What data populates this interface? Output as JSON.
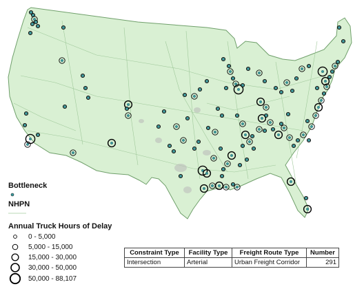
{
  "legend": {
    "bottleneck_label": "Bottleneck",
    "nhpn_label": "NHPN",
    "delay_title": "Annual Truck Hours of Delay",
    "delay_classes": [
      "0 - 5,000",
      "5,000 - 15,000",
      "15,000 - 30,000",
      "30,000 - 50,000",
      "50,000 - 88,107"
    ]
  },
  "table": {
    "headers": [
      "Constraint Type",
      "Facility Type",
      "Freight Route Type",
      "Number"
    ],
    "row": [
      "Intersection",
      "Arterial",
      "Urban Freight Corridor",
      "291"
    ]
  },
  "colors": {
    "land": "#d9f0d3",
    "coast": "#6f9f6a",
    "roads": "#9fc89a",
    "urban": "#b9b9b9",
    "bottleneck_dot": "#3a9ca0",
    "delay_ring": "#000000"
  }
}
